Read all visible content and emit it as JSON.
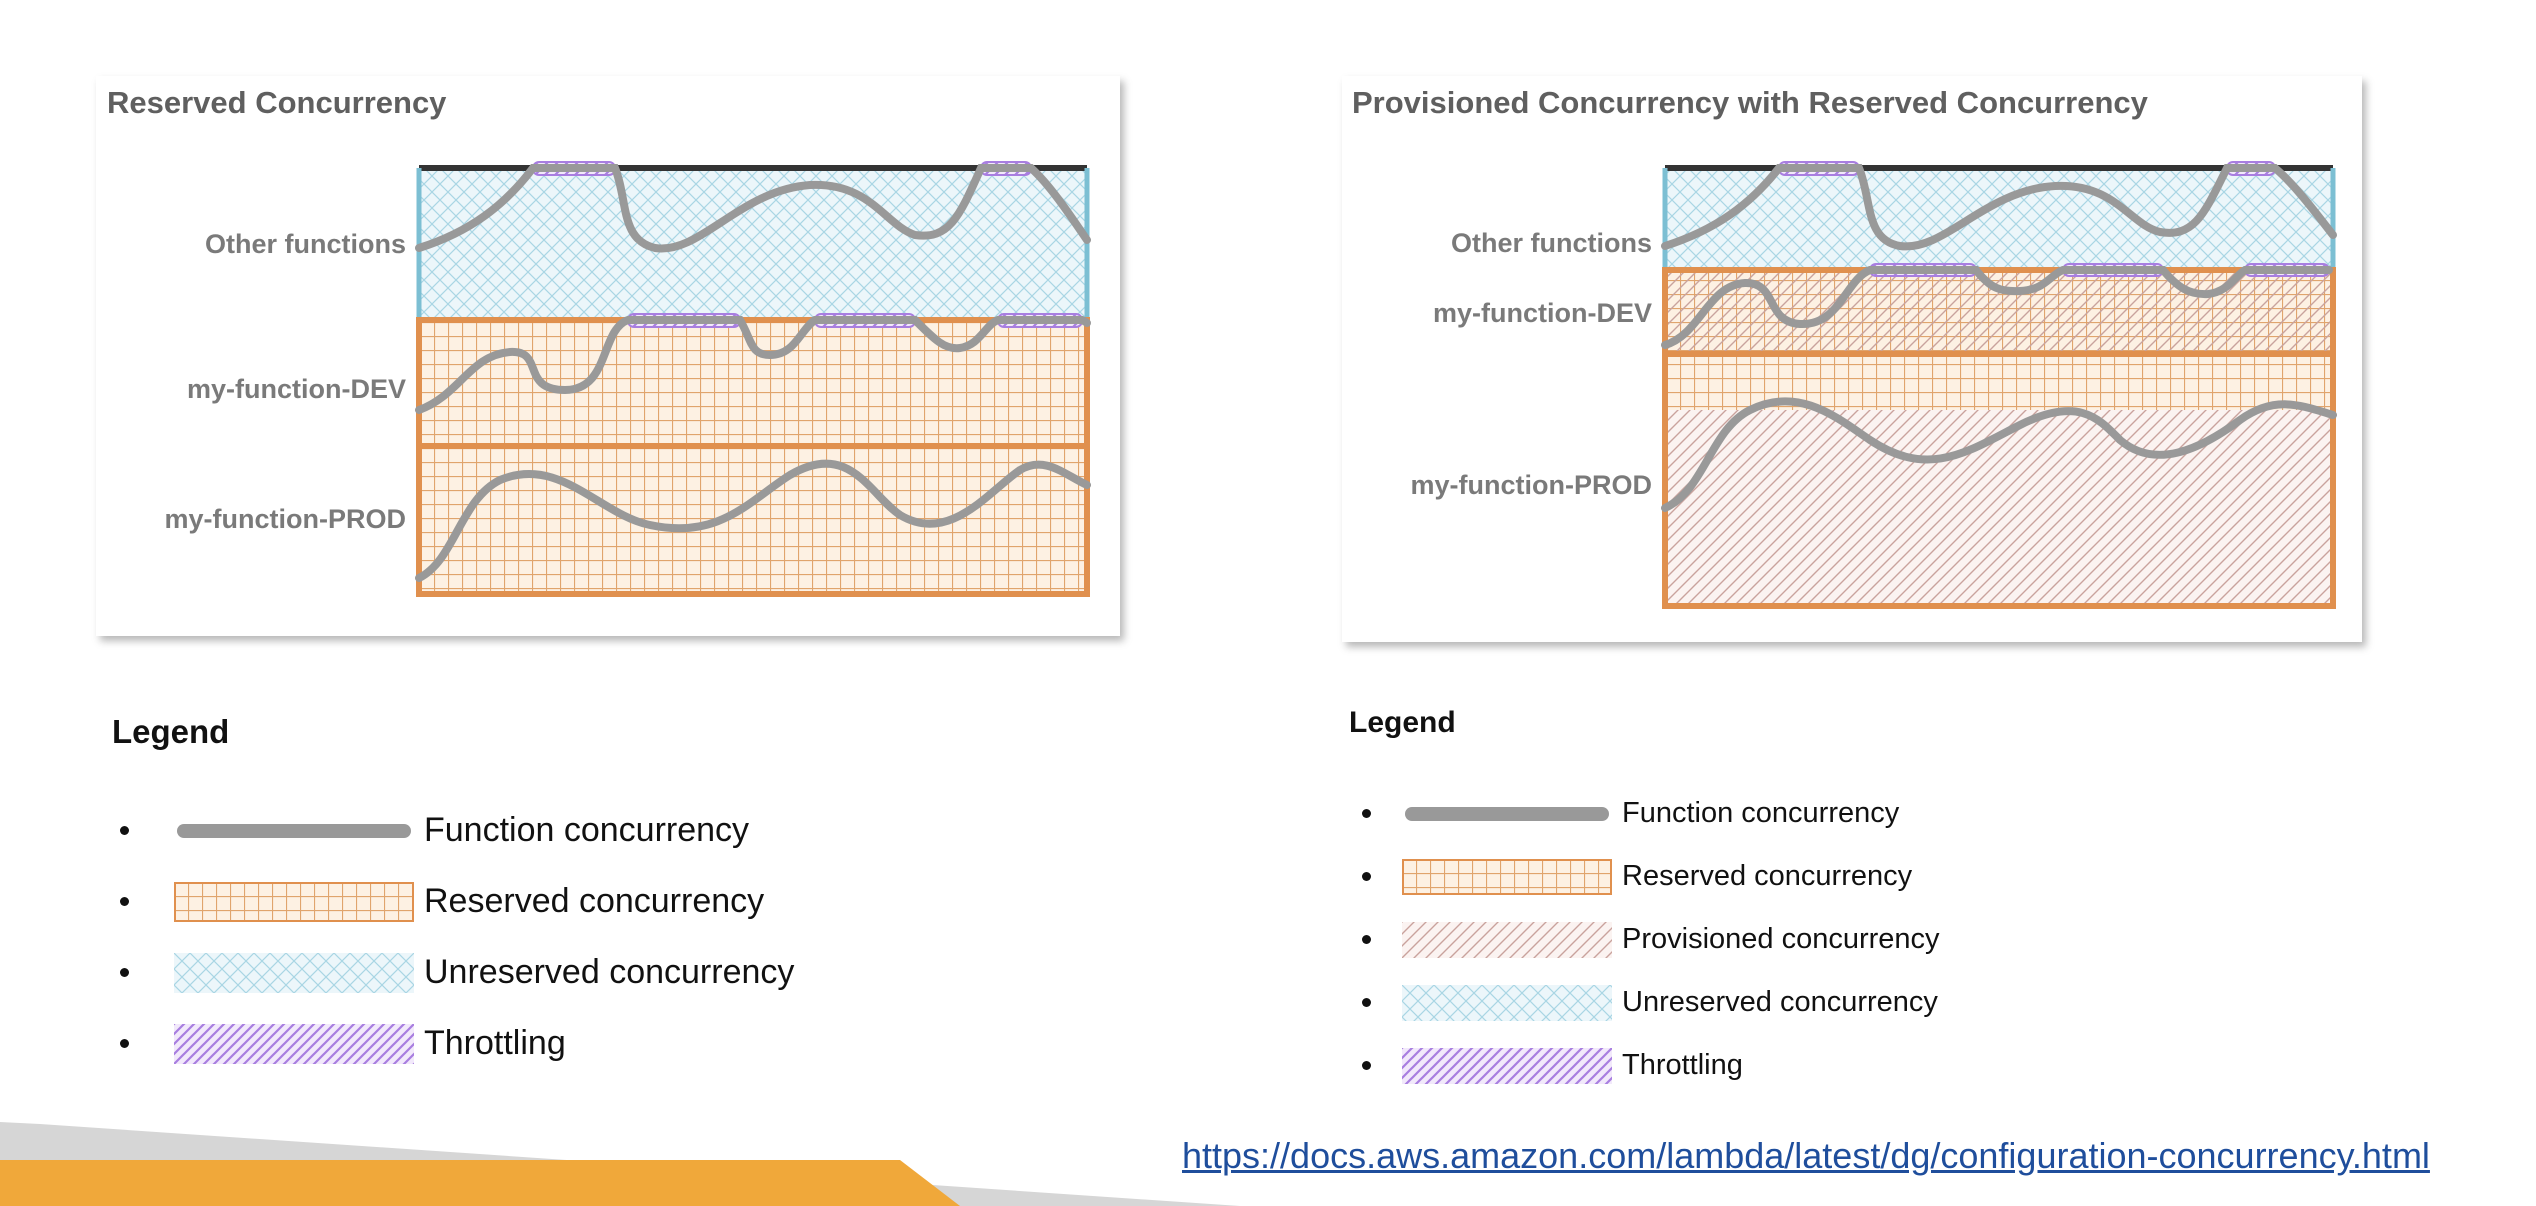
{
  "panels": [
    {
      "title": "Reserved Concurrency",
      "rows": [
        "Other functions",
        "my-function-DEV",
        "my-function-PROD"
      ]
    },
    {
      "title": "Provisioned Concurrency with Reserved Concurrency",
      "rows": [
        "Other functions",
        "my-function-DEV",
        "my-function-PROD"
      ]
    }
  ],
  "legends": [
    {
      "title": "Legend",
      "items": [
        {
          "label": "Function concurrency",
          "swatch": "function"
        },
        {
          "label": "Reserved concurrency",
          "swatch": "reserved"
        },
        {
          "label": "Unreserved concurrency",
          "swatch": "unreserved"
        },
        {
          "label": "Throttling",
          "swatch": "throttling"
        }
      ]
    },
    {
      "title": "Legend",
      "items": [
        {
          "label": "Function concurrency",
          "swatch": "function"
        },
        {
          "label": "Reserved concurrency",
          "swatch": "reserved"
        },
        {
          "label": "Provisioned concurrency",
          "swatch": "provisioned"
        },
        {
          "label": "Unreserved concurrency",
          "swatch": "unreserved"
        },
        {
          "label": "Throttling",
          "swatch": "throttling"
        }
      ]
    }
  ],
  "link": "https://docs.aws.amazon.com/lambda/latest/dg/configuration-concurrency.html",
  "colors": {
    "reserved": "#e0904e",
    "unreserved": "#7cbfd3",
    "provisioned": "#c49a93",
    "throttling": "#a87ee0",
    "function_line": "#999999",
    "footer_orange": "#f0a83a",
    "footer_gray": "#d6d6d6"
  }
}
